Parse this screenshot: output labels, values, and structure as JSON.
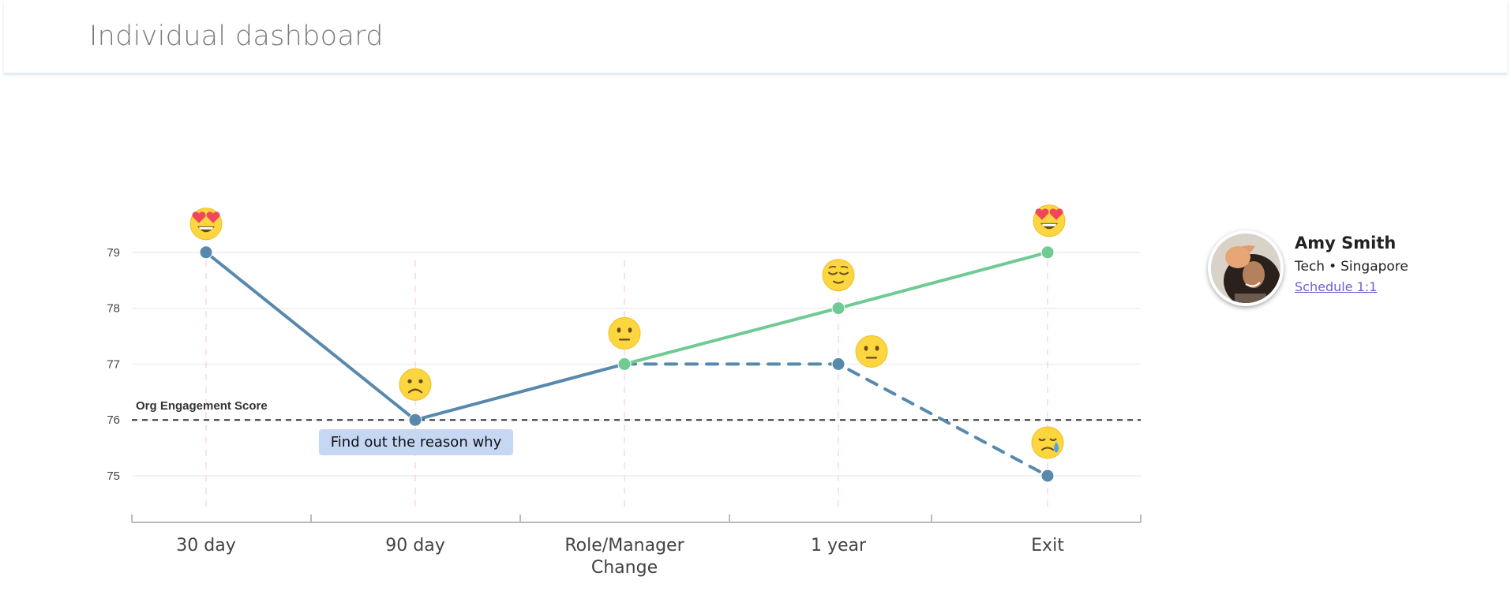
{
  "header": {
    "title": "Individual dashboard"
  },
  "colors": {
    "actual_line": "#5889ad",
    "projection_line": "#6fca94",
    "reference_line": "#333333",
    "grid": "#e6e6e6",
    "stage_guides": "#f3c5cf",
    "callout_bg": "#c5d7f3",
    "link": "#6f5fcf"
  },
  "chart_data": {
    "type": "line",
    "categories": [
      "30 day",
      "90 day",
      "Role/Manager Change",
      "1 year",
      "Exit"
    ],
    "category_display": [
      [
        "30 day"
      ],
      [
        "90 day"
      ],
      [
        "Role/Manager",
        "Change"
      ],
      [
        "1 year"
      ],
      [
        "Exit"
      ]
    ],
    "yticks": [
      75,
      76,
      77,
      78,
      79
    ],
    "ylim": [
      74,
      79.6
    ],
    "grid": true,
    "series": [
      {
        "style": "solid",
        "color": "#5889ad",
        "points": [
          {
            "x": "30 day",
            "y": 79,
            "mood": "heart-eyes"
          },
          {
            "x": "90 day",
            "y": 76,
            "mood": "sad"
          },
          {
            "x": "Role/Manager Change",
            "y": 77,
            "mood": "neutral"
          }
        ]
      },
      {
        "style": "solid",
        "color": "#6fca94",
        "points": [
          {
            "x": "Role/Manager Change",
            "y": 77
          },
          {
            "x": "1 year",
            "y": 78,
            "mood": "relieved"
          },
          {
            "x": "Exit",
            "y": 79,
            "mood": "heart-eyes"
          }
        ]
      },
      {
        "style": "dashed",
        "color": "#5889ad",
        "points": [
          {
            "x": "Role/Manager Change",
            "y": 77
          },
          {
            "x": "1 year",
            "y": 77,
            "mood": "neutral"
          },
          {
            "x": "Exit",
            "y": 75,
            "mood": "crying"
          }
        ]
      }
    ],
    "reference_line": {
      "label": "Org Engagement Score",
      "y": 76,
      "style": "dashed"
    },
    "annotation": {
      "text": "Find out the reason why",
      "near": "90 day"
    }
  },
  "profile": {
    "name": "Amy Smith",
    "department": "Tech",
    "separator": "•",
    "location": "Singapore",
    "action_label": "Schedule 1:1",
    "avatar_icon": "avatar-photo-icon"
  }
}
